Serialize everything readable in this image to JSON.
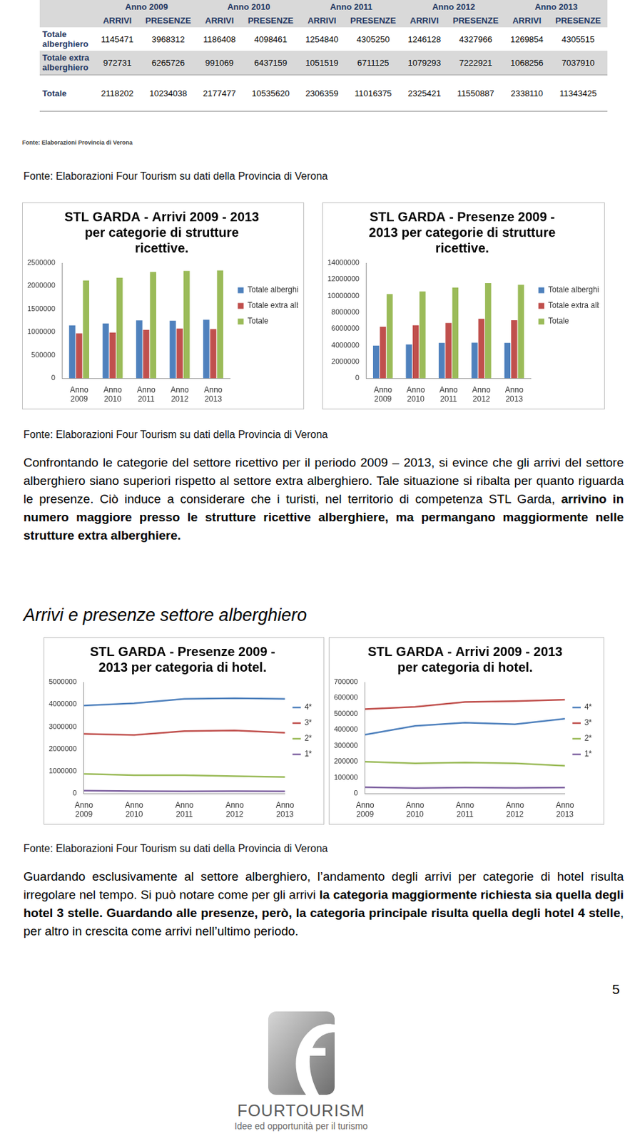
{
  "table": {
    "header": [
      "Anno 2009",
      "Anno 2010",
      "Anno 2011",
      "Anno 2012",
      "Anno 2013"
    ],
    "subheader": [
      "ARRIVI",
      "PRESENZE",
      "ARRIVI",
      "PRESENZE",
      "ARRIVI",
      "PRESENZE",
      "ARRIVI",
      "PRESENZE",
      "ARRIVI",
      "PRESENZE"
    ],
    "rows": [
      {
        "label": "Totale alberghiero",
        "values": [
          1145471,
          3968312,
          1186408,
          4098461,
          1254840,
          4305250,
          1246128,
          4327966,
          1269854,
          4305515
        ]
      },
      {
        "label": "Totale extra alberghiero",
        "values": [
          972731,
          6265726,
          991069,
          6437159,
          1051519,
          6711125,
          1079293,
          7222921,
          1068256,
          7037910
        ]
      },
      {
        "label": "Totale",
        "values": [
          2118202,
          10234038,
          2177477,
          10535620,
          2306359,
          11016375,
          2325421,
          11550887,
          2338110,
          11343425
        ]
      }
    ],
    "source": "Fonte: Elaborazioni Provincia di Verona"
  },
  "sources": [
    "Fonte: Elaborazioni Four Tourism su dati della Provincia di Verona",
    "Fonte: Elaborazioni Four Tourism su dati della Provincia di Verona",
    "Fonte: Elaborazioni Four Tourism su dati della Provincia di Verona"
  ],
  "chart_data": [
    {
      "type": "bar",
      "title": [
        "STL GARDA - Arrivi 2009 - 2013",
        "per categorie di strutture",
        "ricettive."
      ],
      "categories": [
        "Anno 2009",
        "Anno 2010",
        "Anno 2011",
        "Anno 2012",
        "Anno 2013"
      ],
      "series": [
        {
          "name": "Totale alberghiero",
          "color": "#4f81bd",
          "values": [
            1145471,
            1186408,
            1254840,
            1246128,
            1269854
          ]
        },
        {
          "name": "Totale extra alberghiero",
          "color": "#c0504d",
          "values": [
            972731,
            991069,
            1051519,
            1079293,
            1068256
          ]
        },
        {
          "name": "Totale",
          "color": "#9bbb59",
          "values": [
            2118202,
            2177477,
            2306359,
            2325421,
            2338110
          ]
        }
      ],
      "ylim": [
        0,
        2500000
      ],
      "yticks": [
        0,
        500000,
        1000000,
        1500000,
        2000000,
        2500000
      ],
      "grid": false,
      "legend": "right"
    },
    {
      "type": "bar",
      "title": [
        "STL GARDA - Presenze 2009 -",
        "2013 per categorie di strutture",
        "ricettive."
      ],
      "categories": [
        "Anno 2009",
        "Anno 2010",
        "Anno 2011",
        "Anno 2012",
        "Anno 2013"
      ],
      "series": [
        {
          "name": "Totale alberghiero",
          "color": "#4f81bd",
          "values": [
            3968312,
            4098461,
            4305250,
            4327966,
            4305515
          ]
        },
        {
          "name": "Totale extra alberghiero",
          "color": "#c0504d",
          "values": [
            6265726,
            6437159,
            6711125,
            7222921,
            7037910
          ]
        },
        {
          "name": "Totale",
          "color": "#9bbb59",
          "values": [
            10234038,
            10535620,
            11016375,
            11550887,
            11343425
          ]
        }
      ],
      "ylim": [
        0,
        14000000
      ],
      "yticks": [
        0,
        2000000,
        4000000,
        6000000,
        8000000,
        10000000,
        12000000,
        14000000
      ],
      "grid": false,
      "legend": "right"
    },
    {
      "type": "line",
      "title": [
        "STL GARDA - Presenze 2009 -",
        "2013 per categoria di hotel."
      ],
      "categories": [
        "Anno 2009",
        "Anno 2010",
        "Anno 2011",
        "Anno 2012",
        "Anno 2013"
      ],
      "series": [
        {
          "name": "4*",
          "color": "#4f81bd",
          "values": [
            3950000,
            4050000,
            4250000,
            4280000,
            4250000
          ]
        },
        {
          "name": "3*",
          "color": "#c0504d",
          "values": [
            2680000,
            2630000,
            2800000,
            2830000,
            2730000
          ]
        },
        {
          "name": "2*",
          "color": "#9bbb59",
          "values": [
            880000,
            820000,
            820000,
            780000,
            740000
          ]
        },
        {
          "name": "1*",
          "color": "#8064a2",
          "values": [
            130000,
            110000,
            100000,
            110000,
            100000
          ]
        }
      ],
      "ylim": [
        0,
        5000000
      ],
      "yticks": [
        0,
        1000000,
        2000000,
        3000000,
        4000000,
        5000000
      ],
      "grid": false,
      "legend": "right",
      "marker": "none",
      "line_style": "solid"
    },
    {
      "type": "line",
      "title": [
        "STL GARDA - Arrivi 2009 - 2013",
        "per categoria di hotel."
      ],
      "categories": [
        "Anno 2009",
        "Anno 2010",
        "Anno 2011",
        "Anno 2012",
        "Anno 2013"
      ],
      "series": [
        {
          "name": "4*",
          "color": "#4f81bd",
          "values": [
            370000,
            425000,
            445000,
            435000,
            470000
          ]
        },
        {
          "name": "3*",
          "color": "#c0504d",
          "values": [
            530000,
            545000,
            575000,
            580000,
            590000
          ]
        },
        {
          "name": "2*",
          "color": "#9bbb59",
          "values": [
            200000,
            190000,
            195000,
            190000,
            175000
          ]
        },
        {
          "name": "1*",
          "color": "#8064a2",
          "values": [
            40000,
            35000,
            38000,
            36000,
            38000
          ]
        }
      ],
      "ylim": [
        0,
        700000
      ],
      "yticks": [
        0,
        100000,
        200000,
        300000,
        400000,
        500000,
        600000,
        700000
      ],
      "grid": false,
      "legend": "right",
      "marker": "none",
      "line_style": "solid"
    }
  ],
  "paragraphs": [
    {
      "runs": [
        {
          "text": "Confrontando le categorie del settore ricettivo per il periodo 2009 – 2013, si evince che gli arrivi del settore alberghiero siano superiori rispetto al settore extra alberghiero. Tale situazione si ribalta per quanto riguarda le presenze. Ciò induce a considerare che i turisti, nel territorio di competenza STL Garda, ",
          "bold": false
        },
        {
          "text": "arrivino in numero maggiore presso le strutture ricettive alberghiere, ma permangano maggiormente nelle strutture extra alberghiere.",
          "bold": true
        }
      ]
    },
    {
      "runs": [
        {
          "text": "Guardando esclusivamente al settore alberghiero, l’andamento degli arrivi per categorie di hotel risulta irregolare nel tempo. Si può notare come per gli arrivi ",
          "bold": false
        },
        {
          "text": "la categoria maggiormente richiesta sia quella degli hotel 3 stelle. Guardando alle presenze, però, la categoria principale risulta quella degli hotel 4 stelle",
          "bold": true
        },
        {
          "text": ", per altro in crescita come arrivi nell’ultimo periodo.",
          "bold": false
        }
      ]
    }
  ],
  "heading": "Arrivi e presenze settore alberghiero",
  "page_number": "5",
  "logo": {
    "name": "FOURTOURISM",
    "tagline": "Idee ed opportunità per il turismo"
  }
}
